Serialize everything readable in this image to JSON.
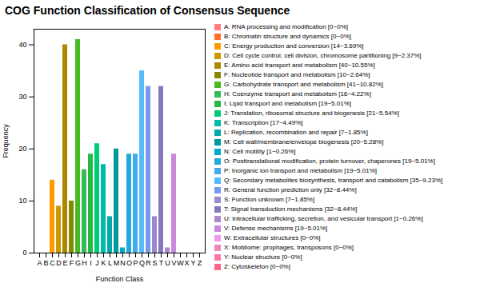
{
  "chart_data": {
    "type": "bar",
    "title": "COG Function Classification of Consensus Sequence",
    "xlabel": "Function Class",
    "ylabel": "Frequency",
    "categories": [
      "A",
      "B",
      "C",
      "D",
      "E",
      "F",
      "G",
      "H",
      "I",
      "J",
      "K",
      "L",
      "M",
      "N",
      "O",
      "P",
      "Q",
      "R",
      "S",
      "T",
      "U",
      "V",
      "W",
      "X",
      "Y",
      "Z"
    ],
    "values": [
      0,
      0,
      14,
      9,
      40,
      10,
      41,
      16,
      19,
      21,
      17,
      7,
      20,
      1,
      19,
      19,
      35,
      32,
      7,
      32,
      1,
      19,
      0,
      0,
      0,
      0
    ],
    "colors": [
      "#FF8080",
      "#FF7030",
      "#FF9900",
      "#CC9900",
      "#AA8800",
      "#888800",
      "#44BB22",
      "#33BB55",
      "#22BB44",
      "#00CC77",
      "#00BBAA",
      "#00AAAA",
      "#009999",
      "#00AACC",
      "#22AADD",
      "#44AAEE",
      "#55BBFF",
      "#7799EE",
      "#9988CC",
      "#8877BB",
      "#AA88CC",
      "#CC88DD",
      "#EE99EE",
      "#EE88BB",
      "#FF77AA",
      "#FF6688"
    ],
    "legend_labels": [
      "A: RNA processing and modification [0~0%]",
      "B: Chromatin structure and dynamics [0~0%]",
      "C: Energy production and conversion [14~3.69%]",
      "D: Cell cycle control, cell division, chromosome partitioning [9~2.37%]",
      "E: Amino acid transport and metabolism [40~10.55%]",
      "F: Nucleotide transport and metabolism [10~2.64%]",
      "G: Carbohydrate transport and metabolism [41~10.82%]",
      "H: Coenzyme transport and metabolism [16~4.22%]",
      "I: Lipid transport and metabolism [19~5.01%]",
      "J: Translation, ribosomal structure and biogenesis [21~5.54%]",
      "K: Transcription [17~4.49%]",
      "L: Replication, recombination and repair [7~1.85%]",
      "M: Cell wall/membrane/envelope biogenesis [20~5.28%]",
      "N: Cell motility [1~0.26%]",
      "O: Posttranslational modification, protein turnover, chaperones [19~5.01%]",
      "P: Inorganic ion transport and metabolism [19~5.01%]",
      "Q: Secondary metabolites biosynthesis, transport and catabolism [35~9.23%]",
      "R: General function prediction only [32~8.44%]",
      "S: Function unknown [7~1.85%]",
      "T: Signal transduction mechanisms [32~8.44%]",
      "U: Intracellular trafficking, secretion, and vesicular transport [1~0.26%]",
      "V: Defense mechanisms [19~5.01%]",
      "W: Extracellular structures [0~0%]",
      "X: Mobilome: prophages, transposons [0~0%]",
      "Y: Nuclear structure [0~0%]",
      "Z: Cytoskeleton [0~0%]"
    ],
    "ylim": [
      0,
      43
    ],
    "yticks": [
      0,
      10,
      20,
      30,
      40
    ],
    "grid": false,
    "legend": "right"
  }
}
